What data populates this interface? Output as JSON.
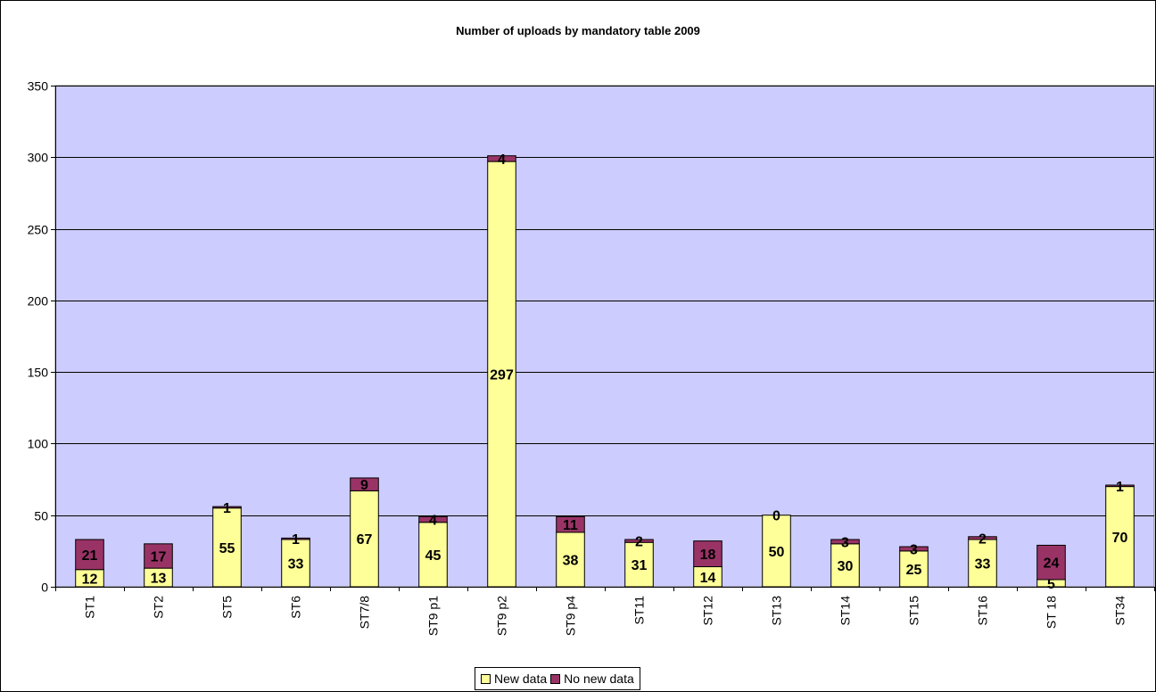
{
  "chart_data": {
    "type": "bar",
    "stacked": true,
    "title": "Number of uploads by mandatory table 2009",
    "xlabel": "",
    "ylabel": "",
    "ylim": [
      0,
      350
    ],
    "yticks": [
      0,
      50,
      100,
      150,
      200,
      250,
      300,
      350
    ],
    "grid": true,
    "legend_position": "bottom",
    "categories": [
      "ST1",
      "ST2",
      "ST5",
      "ST6",
      "ST7/8",
      "ST9 p1",
      "ST9 p2",
      "ST9 p4",
      "ST11",
      "ST12",
      "ST13",
      "ST14",
      "ST15",
      "ST16",
      "ST 18",
      "ST34"
    ],
    "series": [
      {
        "name": "New data",
        "color": "#ffff99",
        "values": [
          12,
          13,
          55,
          33,
          67,
          45,
          297,
          38,
          31,
          14,
          50,
          30,
          25,
          33,
          5,
          70
        ]
      },
      {
        "name": "No new data",
        "color": "#993366",
        "values": [
          21,
          17,
          1,
          1,
          9,
          4,
          4,
          11,
          2,
          18,
          0,
          3,
          3,
          2,
          24,
          1
        ]
      }
    ],
    "plot_background": "#ccccff"
  }
}
